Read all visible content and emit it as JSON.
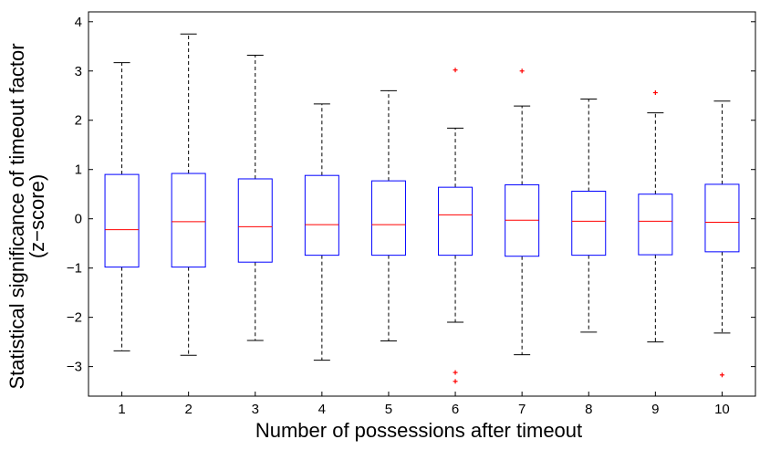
{
  "chart_data": {
    "type": "box",
    "xlabel": "Number of possessions after timeout",
    "ylabel_lines": [
      "Statistical significance of timeout factor",
      "(z−score)"
    ],
    "ylim": [
      -3.6,
      4.2
    ],
    "yticks": [
      -3,
      -2,
      -1,
      0,
      1,
      2,
      3,
      4
    ],
    "ytick_labels": [
      "−3",
      "−2",
      "−1",
      "0",
      "1",
      "2",
      "3",
      "4"
    ],
    "categories": [
      "1",
      "2",
      "3",
      "4",
      "5",
      "6",
      "7",
      "8",
      "9",
      "10"
    ],
    "colors": {
      "box": "#0000ff",
      "median": "#ff0000",
      "whisker": "#000000",
      "outlier": "#ff0000"
    },
    "boxes": [
      {
        "category": "1",
        "whisker_low": -2.68,
        "q1": -0.98,
        "median": -0.22,
        "q3": 0.9,
        "whisker_high": 3.17,
        "outliers": []
      },
      {
        "category": "2",
        "whisker_low": -2.77,
        "q1": -0.98,
        "median": -0.06,
        "q3": 0.92,
        "whisker_high": 3.75,
        "outliers": []
      },
      {
        "category": "3",
        "whisker_low": -2.47,
        "q1": -0.88,
        "median": -0.16,
        "q3": 0.81,
        "whisker_high": 3.32,
        "outliers": []
      },
      {
        "category": "4",
        "whisker_low": -2.87,
        "q1": -0.74,
        "median": -0.12,
        "q3": 0.88,
        "whisker_high": 2.33,
        "outliers": []
      },
      {
        "category": "5",
        "whisker_low": -2.48,
        "q1": -0.74,
        "median": -0.12,
        "q3": 0.77,
        "whisker_high": 2.6,
        "outliers": []
      },
      {
        "category": "6",
        "whisker_low": -2.1,
        "q1": -0.74,
        "median": 0.08,
        "q3": 0.64,
        "whisker_high": 1.84,
        "outliers": [
          3.02,
          -3.12,
          -3.3
        ]
      },
      {
        "category": "7",
        "whisker_low": -2.76,
        "q1": -0.76,
        "median": -0.03,
        "q3": 0.69,
        "whisker_high": 2.29,
        "outliers": [
          3.0
        ]
      },
      {
        "category": "8",
        "whisker_low": -2.3,
        "q1": -0.74,
        "median": -0.05,
        "q3": 0.56,
        "whisker_high": 2.43,
        "outliers": []
      },
      {
        "category": "9",
        "whisker_low": -2.5,
        "q1": -0.73,
        "median": -0.05,
        "q3": 0.5,
        "whisker_high": 2.15,
        "outliers": [
          2.56
        ]
      },
      {
        "category": "10",
        "whisker_low": -2.32,
        "q1": -0.67,
        "median": -0.07,
        "q3": 0.7,
        "whisker_high": 2.39,
        "outliers": [
          -3.17
        ]
      }
    ]
  }
}
